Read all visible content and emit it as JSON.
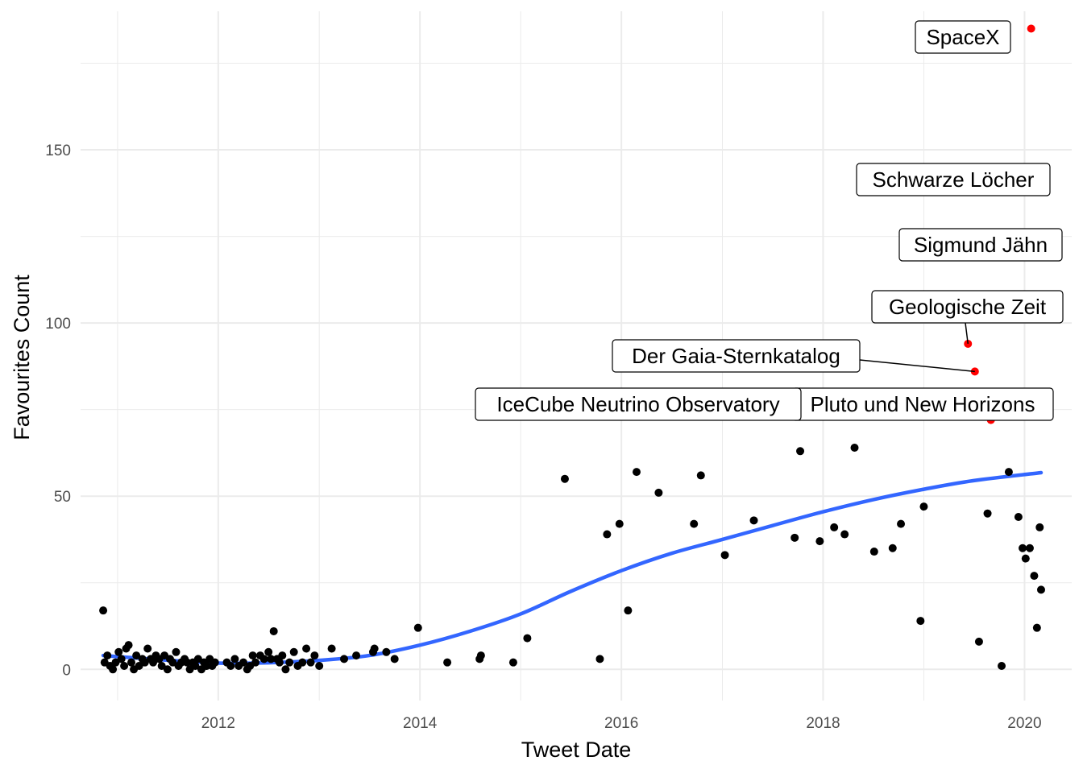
{
  "chart_data": {
    "type": "scatter",
    "xlabel": "Tweet Date",
    "ylabel": "Favourites Count",
    "x_ticks": [
      "2012",
      "2014",
      "2016",
      "2018",
      "2020"
    ],
    "y_ticks": [
      "0",
      "50",
      "100",
      "150"
    ],
    "xlim": [
      "2010-08-20",
      "2020-06-20"
    ],
    "ylim": [
      -9,
      190
    ],
    "grid": true,
    "legend": "none",
    "colors": {
      "points": "#000000",
      "highlight": "#ff0000",
      "trend": "#3366ff",
      "grid": "#ebebeb"
    },
    "series": [
      {
        "kind": "points",
        "points": [
          [
            "2010-11-10",
            17
          ],
          [
            "2010-11-15",
            2
          ],
          [
            "2010-11-25",
            4
          ],
          [
            "2010-12-05",
            1
          ],
          [
            "2010-12-15",
            0
          ],
          [
            "2010-12-25",
            2
          ],
          [
            "2011-01-05",
            5
          ],
          [
            "2011-01-15",
            3
          ],
          [
            "2011-01-25",
            1
          ],
          [
            "2011-02-01",
            6
          ],
          [
            "2011-02-10",
            7
          ],
          [
            "2011-02-20",
            2
          ],
          [
            "2011-03-01",
            0
          ],
          [
            "2011-03-10",
            4
          ],
          [
            "2011-03-20",
            1
          ],
          [
            "2011-04-01",
            3
          ],
          [
            "2011-04-10",
            2
          ],
          [
            "2011-04-20",
            6
          ],
          [
            "2011-05-01",
            3
          ],
          [
            "2011-05-10",
            2
          ],
          [
            "2011-05-20",
            4
          ],
          [
            "2011-06-01",
            3
          ],
          [
            "2011-06-10",
            1
          ],
          [
            "2011-06-20",
            4
          ],
          [
            "2011-07-01",
            0
          ],
          [
            "2011-07-10",
            3
          ],
          [
            "2011-07-20",
            2
          ],
          [
            "2011-08-01",
            5
          ],
          [
            "2011-08-10",
            1
          ],
          [
            "2011-08-20",
            2
          ],
          [
            "2011-09-01",
            3
          ],
          [
            "2011-09-10",
            2
          ],
          [
            "2011-09-20",
            0
          ],
          [
            "2011-10-01",
            2
          ],
          [
            "2011-10-10",
            1
          ],
          [
            "2011-10-20",
            3
          ],
          [
            "2011-11-01",
            0
          ],
          [
            "2011-11-10",
            2
          ],
          [
            "2011-11-20",
            1
          ],
          [
            "2011-12-01",
            3
          ],
          [
            "2011-12-10",
            1
          ],
          [
            "2011-12-20",
            2
          ],
          [
            "2012-02-01",
            2
          ],
          [
            "2012-02-15",
            1
          ],
          [
            "2012-03-01",
            3
          ],
          [
            "2012-03-15",
            1
          ],
          [
            "2012-04-01",
            2
          ],
          [
            "2012-04-15",
            0
          ],
          [
            "2012-04-25",
            1
          ],
          [
            "2012-05-05",
            4
          ],
          [
            "2012-05-15",
            2
          ],
          [
            "2012-06-01",
            4
          ],
          [
            "2012-06-15",
            3
          ],
          [
            "2012-07-01",
            5
          ],
          [
            "2012-07-10",
            3
          ],
          [
            "2012-07-20",
            11
          ],
          [
            "2012-08-01",
            3
          ],
          [
            "2012-08-10",
            2
          ],
          [
            "2012-08-20",
            4
          ],
          [
            "2012-09-01",
            0
          ],
          [
            "2012-09-15",
            2
          ],
          [
            "2012-10-01",
            5
          ],
          [
            "2012-10-15",
            1
          ],
          [
            "2012-11-01",
            2
          ],
          [
            "2012-11-15",
            6
          ],
          [
            "2012-12-01",
            2
          ],
          [
            "2012-12-15",
            4
          ],
          [
            "2013-01-01",
            1
          ],
          [
            "2013-02-15",
            6
          ],
          [
            "2013-04-01",
            3
          ],
          [
            "2013-05-15",
            4
          ],
          [
            "2013-07-15",
            5
          ],
          [
            "2013-07-20",
            6
          ],
          [
            "2013-09-01",
            5
          ],
          [
            "2013-10-01",
            3
          ],
          [
            "2013-12-25",
            12
          ],
          [
            "2014-04-10",
            2
          ],
          [
            "2014-08-05",
            3
          ],
          [
            "2014-08-10",
            4
          ],
          [
            "2014-12-05",
            2
          ],
          [
            "2015-01-25",
            9
          ],
          [
            "2015-06-10",
            55
          ],
          [
            "2015-10-15",
            3
          ],
          [
            "2015-11-10",
            39
          ],
          [
            "2015-12-25",
            42
          ],
          [
            "2016-01-25",
            17
          ],
          [
            "2016-02-25",
            57
          ],
          [
            "2016-05-15",
            51
          ],
          [
            "2016-09-20",
            42
          ],
          [
            "2016-10-15",
            56
          ],
          [
            "2017-01-10",
            33
          ],
          [
            "2017-04-25",
            43
          ],
          [
            "2017-09-20",
            38
          ],
          [
            "2017-10-10",
            63
          ],
          [
            "2017-12-20",
            37
          ],
          [
            "2018-02-10",
            41
          ],
          [
            "2018-03-20",
            39
          ],
          [
            "2018-04-25",
            64
          ],
          [
            "2018-07-05",
            34
          ],
          [
            "2018-09-10",
            35
          ],
          [
            "2018-10-10",
            42
          ],
          [
            "2018-12-20",
            14
          ],
          [
            "2019-01-01",
            47
          ],
          [
            "2019-07-20",
            8
          ],
          [
            "2019-08-20",
            45
          ],
          [
            "2019-10-10",
            1
          ],
          [
            "2019-11-05",
            57
          ],
          [
            "2019-12-10",
            44
          ],
          [
            "2019-12-25",
            35
          ],
          [
            "2020-01-05",
            32
          ],
          [
            "2020-01-20",
            35
          ],
          [
            "2020-02-05",
            27
          ],
          [
            "2020-02-15",
            12
          ],
          [
            "2020-02-25",
            41
          ],
          [
            "2020-03-01",
            23
          ]
        ]
      },
      {
        "kind": "highlight",
        "points": [
          [
            "2018-07-15",
            73
          ],
          [
            "2019-05-10",
            138
          ],
          [
            "2019-06-10",
            94
          ],
          [
            "2019-07-05",
            86
          ],
          [
            "2019-09-01",
            72
          ],
          [
            "2019-10-05",
            119
          ],
          [
            "2020-01-25",
            185
          ]
        ]
      },
      {
        "kind": "trend",
        "name": "",
        "points": [
          [
            "2010-11-10",
            4
          ],
          [
            "2011-06-01",
            2.8
          ],
          [
            "2012-01-01",
            1.8
          ],
          [
            "2012-07-01",
            1.9
          ],
          [
            "2013-01-01",
            2.6
          ],
          [
            "2013-07-01",
            4.0
          ],
          [
            "2014-01-01",
            7.0
          ],
          [
            "2014-07-01",
            11.0
          ],
          [
            "2015-01-01",
            16.0
          ],
          [
            "2015-07-01",
            22.5
          ],
          [
            "2016-01-01",
            28.5
          ],
          [
            "2016-07-01",
            33.5
          ],
          [
            "2017-01-01",
            37.5
          ],
          [
            "2017-07-01",
            41.5
          ],
          [
            "2018-01-01",
            45.5
          ],
          [
            "2018-07-01",
            49.0
          ],
          [
            "2019-01-01",
            52.0
          ],
          [
            "2019-07-01",
            54.5
          ],
          [
            "2020-03-01",
            56.8
          ]
        ]
      }
    ],
    "annotations": [
      {
        "text": "SpaceX",
        "target": [
          "2020-01-25",
          185
        ]
      },
      {
        "text": "Schwarze Löcher",
        "target": [
          "2019-05-10",
          138
        ]
      },
      {
        "text": "Sigmund Jähn",
        "target": [
          "2019-10-05",
          119
        ]
      },
      {
        "text": "Geologische Zeit",
        "target": [
          "2019-06-10",
          94
        ]
      },
      {
        "text": "Der Gaia-Sternkatalog",
        "target": [
          "2019-07-05",
          86
        ]
      },
      {
        "text": "Pluto und New Horizons",
        "target": [
          "2019-09-01",
          72
        ]
      },
      {
        "text": "IceCube Neutrino Observatory",
        "target": [
          "2018-07-15",
          73
        ]
      }
    ]
  }
}
